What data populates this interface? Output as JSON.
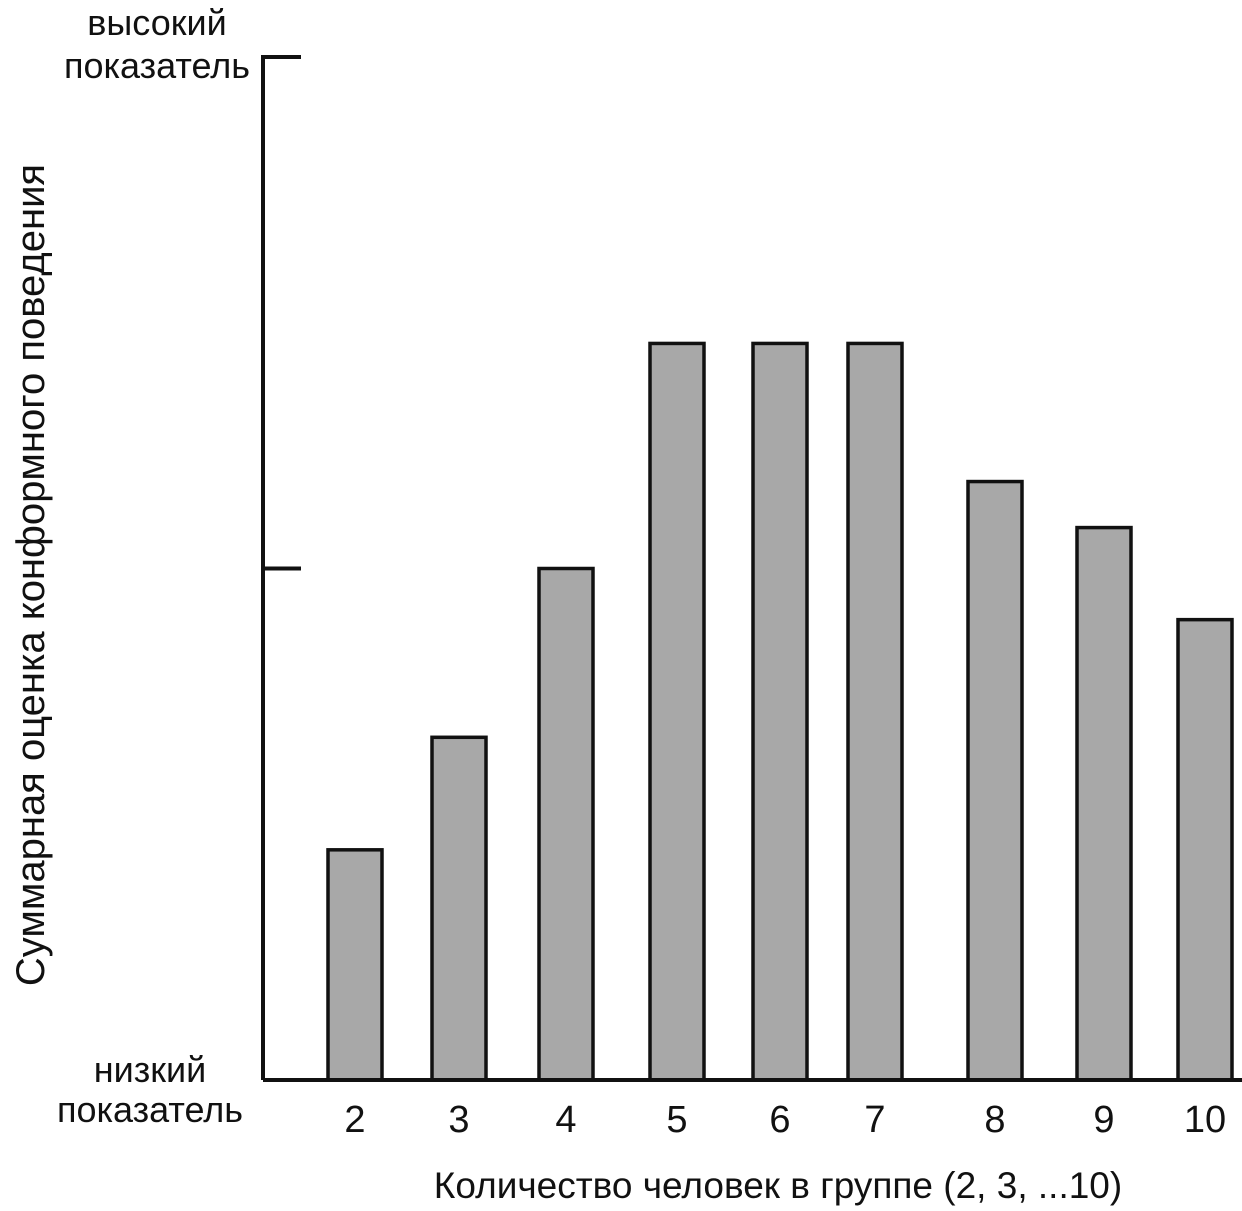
{
  "chart_data": {
    "type": "bar",
    "categories": [
      "2",
      "3",
      "4",
      "5",
      "6",
      "7",
      "8",
      "9",
      "10"
    ],
    "values": [
      0.45,
      0.67,
      1.0,
      1.44,
      1.44,
      1.44,
      1.17,
      1.08,
      0.9
    ],
    "ylim": [
      0,
      2
    ],
    "y_tick_values": [
      0,
      1,
      2
    ],
    "y_top_label": [
      "высокий",
      "показатель"
    ],
    "y_bottom_label": [
      "низкий",
      "показатель"
    ],
    "xlabel": "Количество человек в группе (2, 3, ...10)",
    "ylabel": "Суммарная оценка конформного поведения",
    "title": "",
    "grid": false,
    "legend": "none",
    "colors": {
      "bar_fill": "#a8a8a8",
      "bar_stroke": "#111111",
      "axis": "#111111",
      "text": "#111111"
    }
  }
}
